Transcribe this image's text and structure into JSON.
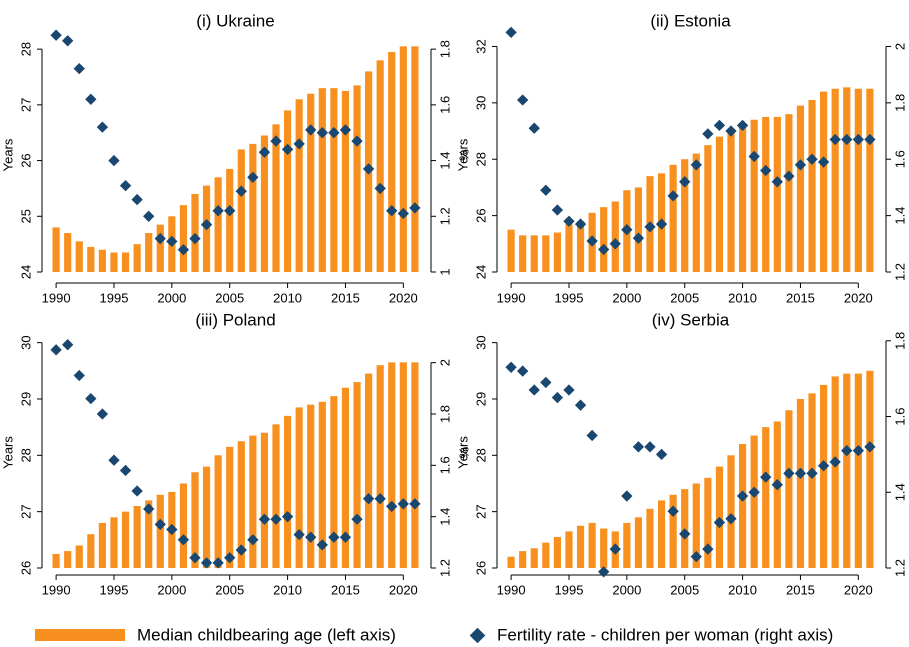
{
  "chart_data": [
    {
      "type": "combo",
      "title": "(i) Ukraine",
      "ylabel": "Years",
      "y2label": "%",
      "x": [
        1990,
        1991,
        1992,
        1993,
        1994,
        1995,
        1996,
        1997,
        1998,
        1999,
        2000,
        2001,
        2002,
        2003,
        2004,
        2005,
        2006,
        2007,
        2008,
        2009,
        2010,
        2011,
        2012,
        2013,
        2014,
        2015,
        2016,
        2017,
        2018,
        2019,
        2020,
        2021
      ],
      "xlim": [
        1989.3,
        2021.7
      ],
      "xticks": [
        1990,
        1995,
        2000,
        2005,
        2010,
        2015,
        2020
      ],
      "ylim": [
        24,
        28.2
      ],
      "yticks": [
        24,
        25,
        26,
        27,
        28
      ],
      "y2lim": [
        1,
        1.84
      ],
      "y2ticks": [
        1,
        1.2,
        1.4,
        1.6,
        1.8
      ],
      "series": [
        {
          "name": "Median childbearing age (left axis)",
          "type": "bar",
          "color": "#f7901e",
          "values": [
            24.8,
            24.7,
            24.55,
            24.45,
            24.4,
            24.35,
            24.35,
            24.5,
            24.7,
            24.85,
            25.0,
            25.2,
            25.4,
            25.55,
            25.7,
            25.85,
            26.2,
            26.3,
            26.45,
            26.65,
            26.9,
            27.1,
            27.2,
            27.3,
            27.3,
            27.25,
            27.35,
            27.6,
            27.8,
            27.95,
            28.05,
            28.05
          ]
        },
        {
          "name": "Fertility rate - children per woman (right axis)",
          "type": "scatter",
          "axis": "y2",
          "color": "#1a476f",
          "values": [
            1.85,
            1.83,
            1.73,
            1.62,
            1.52,
            1.4,
            1.31,
            1.26,
            1.2,
            1.12,
            1.11,
            1.08,
            1.12,
            1.17,
            1.22,
            1.22,
            1.29,
            1.34,
            1.43,
            1.47,
            1.44,
            1.46,
            1.51,
            1.5,
            1.5,
            1.51,
            1.47,
            1.37,
            1.3,
            1.22,
            1.21,
            1.23
          ]
        }
      ]
    },
    {
      "type": "combo",
      "title": "(ii) Estonia",
      "ylabel": "Years",
      "y2label": "%",
      "x": [
        1990,
        1991,
        1992,
        1993,
        1994,
        1995,
        1996,
        1997,
        1998,
        1999,
        2000,
        2001,
        2002,
        2003,
        2004,
        2005,
        2006,
        2007,
        2008,
        2009,
        2010,
        2011,
        2012,
        2013,
        2014,
        2015,
        2016,
        2017,
        2018,
        2019,
        2020,
        2021
      ],
      "xlim": [
        1989.3,
        2021.7
      ],
      "xticks": [
        1990,
        1995,
        2000,
        2005,
        2010,
        2015,
        2020
      ],
      "ylim": [
        24,
        32.3
      ],
      "yticks": [
        24,
        26,
        28,
        30,
        32
      ],
      "y2lim": [
        1.2,
        2.03
      ],
      "y2ticks": [
        1.2,
        1.4,
        1.6,
        1.8,
        2
      ],
      "series": [
        {
          "name": "Median childbearing age (left axis)",
          "type": "bar",
          "color": "#f7901e",
          "values": [
            25.5,
            25.3,
            25.3,
            25.3,
            25.4,
            25.7,
            25.8,
            26.1,
            26.3,
            26.5,
            26.9,
            27.0,
            27.4,
            27.5,
            27.8,
            28.0,
            28.2,
            28.5,
            28.8,
            29.0,
            29.2,
            29.4,
            29.5,
            29.5,
            29.6,
            29.9,
            30.1,
            30.4,
            30.5,
            30.55,
            30.5,
            30.5
          ]
        },
        {
          "name": "Fertility rate - children per woman (right axis)",
          "type": "scatter",
          "axis": "y2",
          "color": "#1a476f",
          "values": [
            2.05,
            1.81,
            1.71,
            1.49,
            1.42,
            1.38,
            1.37,
            1.31,
            1.28,
            1.3,
            1.35,
            1.32,
            1.36,
            1.37,
            1.47,
            1.52,
            1.58,
            1.69,
            1.72,
            1.7,
            1.72,
            1.61,
            1.56,
            1.52,
            1.54,
            1.58,
            1.6,
            1.59,
            1.67,
            1.67,
            1.67,
            1.67
          ]
        }
      ]
    },
    {
      "type": "combo",
      "title": "(iii) Poland",
      "ylabel": "Years",
      "y2label": "%",
      "x": [
        1990,
        1991,
        1992,
        1993,
        1994,
        1995,
        1996,
        1997,
        1998,
        1999,
        2000,
        2001,
        2002,
        2003,
        2004,
        2005,
        2006,
        2007,
        2008,
        2009,
        2010,
        2011,
        2012,
        2013,
        2014,
        2015,
        2016,
        2017,
        2018,
        2019,
        2020,
        2021
      ],
      "xlim": [
        1989.3,
        2021.7
      ],
      "xticks": [
        1990,
        1995,
        2000,
        2005,
        2010,
        2015,
        2020
      ],
      "ylim": [
        26,
        30.1
      ],
      "yticks": [
        26,
        27,
        28,
        29,
        30
      ],
      "y2lim": [
        1.2,
        2.1
      ],
      "y2ticks": [
        1.2,
        1.4,
        1.6,
        1.8,
        2
      ],
      "series": [
        {
          "name": "Median childbearing age (left axis)",
          "type": "bar",
          "color": "#f7901e",
          "values": [
            26.25,
            26.3,
            26.4,
            26.6,
            26.8,
            26.9,
            27.0,
            27.1,
            27.2,
            27.3,
            27.35,
            27.5,
            27.7,
            27.8,
            28.0,
            28.15,
            28.25,
            28.35,
            28.4,
            28.55,
            28.7,
            28.85,
            28.9,
            28.95,
            29.05,
            29.2,
            29.3,
            29.45,
            29.6,
            29.65,
            29.65,
            29.65
          ]
        },
        {
          "name": "Fertility rate - children per woman (right axis)",
          "type": "scatter",
          "axis": "y2",
          "color": "#1a476f",
          "values": [
            2.05,
            2.07,
            1.95,
            1.86,
            1.8,
            1.62,
            1.58,
            1.5,
            1.43,
            1.37,
            1.35,
            1.31,
            1.24,
            1.22,
            1.22,
            1.24,
            1.27,
            1.31,
            1.39,
            1.39,
            1.4,
            1.33,
            1.32,
            1.29,
            1.32,
            1.32,
            1.39,
            1.47,
            1.47,
            1.44,
            1.45,
            1.45
          ]
        }
      ]
    },
    {
      "type": "combo",
      "title": "(iv) Serbia",
      "ylabel": "Years",
      "y2label": "%",
      "x": [
        1990,
        1991,
        1992,
        1993,
        1994,
        1995,
        1996,
        1997,
        1998,
        1999,
        2000,
        2001,
        2002,
        2003,
        2004,
        2005,
        2006,
        2007,
        2008,
        2009,
        2010,
        2011,
        2012,
        2013,
        2014,
        2015,
        2016,
        2017,
        2018,
        2019,
        2020,
        2021
      ],
      "xlim": [
        1989.3,
        2021.7
      ],
      "xticks": [
        1990,
        1995,
        2000,
        2005,
        2010,
        2015,
        2020
      ],
      "ylim": [
        26,
        30.1
      ],
      "yticks": [
        26,
        27,
        28,
        29,
        30
      ],
      "y2lim": [
        1.2,
        1.81
      ],
      "y2ticks": [
        1.2,
        1.4,
        1.6,
        1.8
      ],
      "series": [
        {
          "name": "Median childbearing age (left axis)",
          "type": "bar",
          "color": "#f7901e",
          "values": [
            26.2,
            26.3,
            26.35,
            26.45,
            26.55,
            26.65,
            26.75,
            26.8,
            26.7,
            26.65,
            26.8,
            26.9,
            27.05,
            27.2,
            27.3,
            27.4,
            27.5,
            27.6,
            27.8,
            28.0,
            28.2,
            28.35,
            28.5,
            28.6,
            28.8,
            29.0,
            29.1,
            29.25,
            29.4,
            29.45,
            29.45,
            29.5
          ]
        },
        {
          "name": "Fertility rate - children per woman (right axis)",
          "type": "scatter",
          "axis": "y2",
          "color": "#1a476f",
          "values": [
            1.73,
            1.72,
            1.67,
            1.69,
            1.65,
            1.67,
            1.63,
            1.55,
            1.19,
            1.25,
            1.39,
            1.52,
            1.52,
            1.5,
            1.35,
            1.29,
            1.23,
            1.25,
            1.32,
            1.33,
            1.39,
            1.4,
            1.44,
            1.42,
            1.45,
            1.45,
            1.45,
            1.47,
            1.48,
            1.51,
            1.51,
            1.52
          ]
        }
      ]
    }
  ]
}
